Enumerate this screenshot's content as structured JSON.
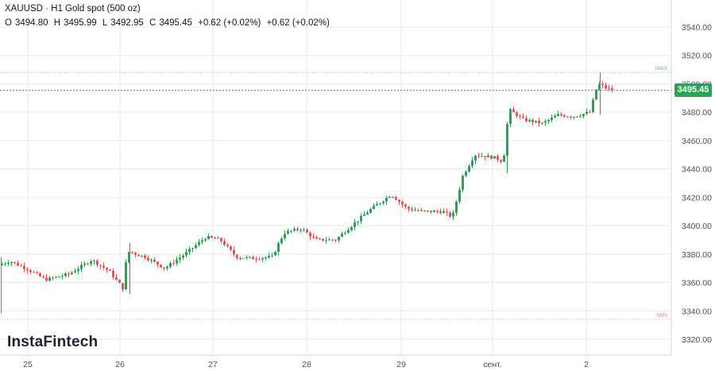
{
  "header": {
    "title": "XAUUSD · H1 Gold spot (500 oz)",
    "o_label": "O",
    "o_value": "3494.80",
    "h_label": "H",
    "h_value": "3495.99",
    "l_label": "L",
    "l_value": "3492.95",
    "c_label": "C",
    "c_value": "3495.45",
    "change": "+0.62 (+0.02%)",
    "change2": "+0.62 (+0.02%)"
  },
  "logo": "InstaFintech",
  "current_price_label": "3495.45",
  "max_label": "MAX",
  "min_label": "MIN",
  "colors": {
    "up": "#26a653",
    "down": "#ef5350",
    "grid": "#e8eaee",
    "price_line": "#26a653",
    "min_line": "#ef9a9a"
  },
  "chart_data": {
    "type": "candlestick",
    "instrument": "XAUUSD",
    "timeframe": "H1",
    "y_ticks": [
      3320,
      3340,
      3360,
      3380,
      3400,
      3420,
      3440,
      3460,
      3480,
      3500,
      3520,
      3540
    ],
    "y_tick_labels": [
      "3320.00",
      "3340.00",
      "3360.00",
      "3380.00",
      "3400.00",
      "3420.00",
      "3440.00",
      "3460.00",
      "3480.00",
      "3500.00",
      "3520.00",
      "3540.00"
    ],
    "ylim": [
      3312,
      3554
    ],
    "x_labels": [
      "25",
      "26",
      "27",
      "28",
      "29",
      "сент.",
      "2"
    ],
    "max_level": 3508,
    "min_level": 3334,
    "last_price": 3495.45,
    "grid": true,
    "legend": "none"
  }
}
